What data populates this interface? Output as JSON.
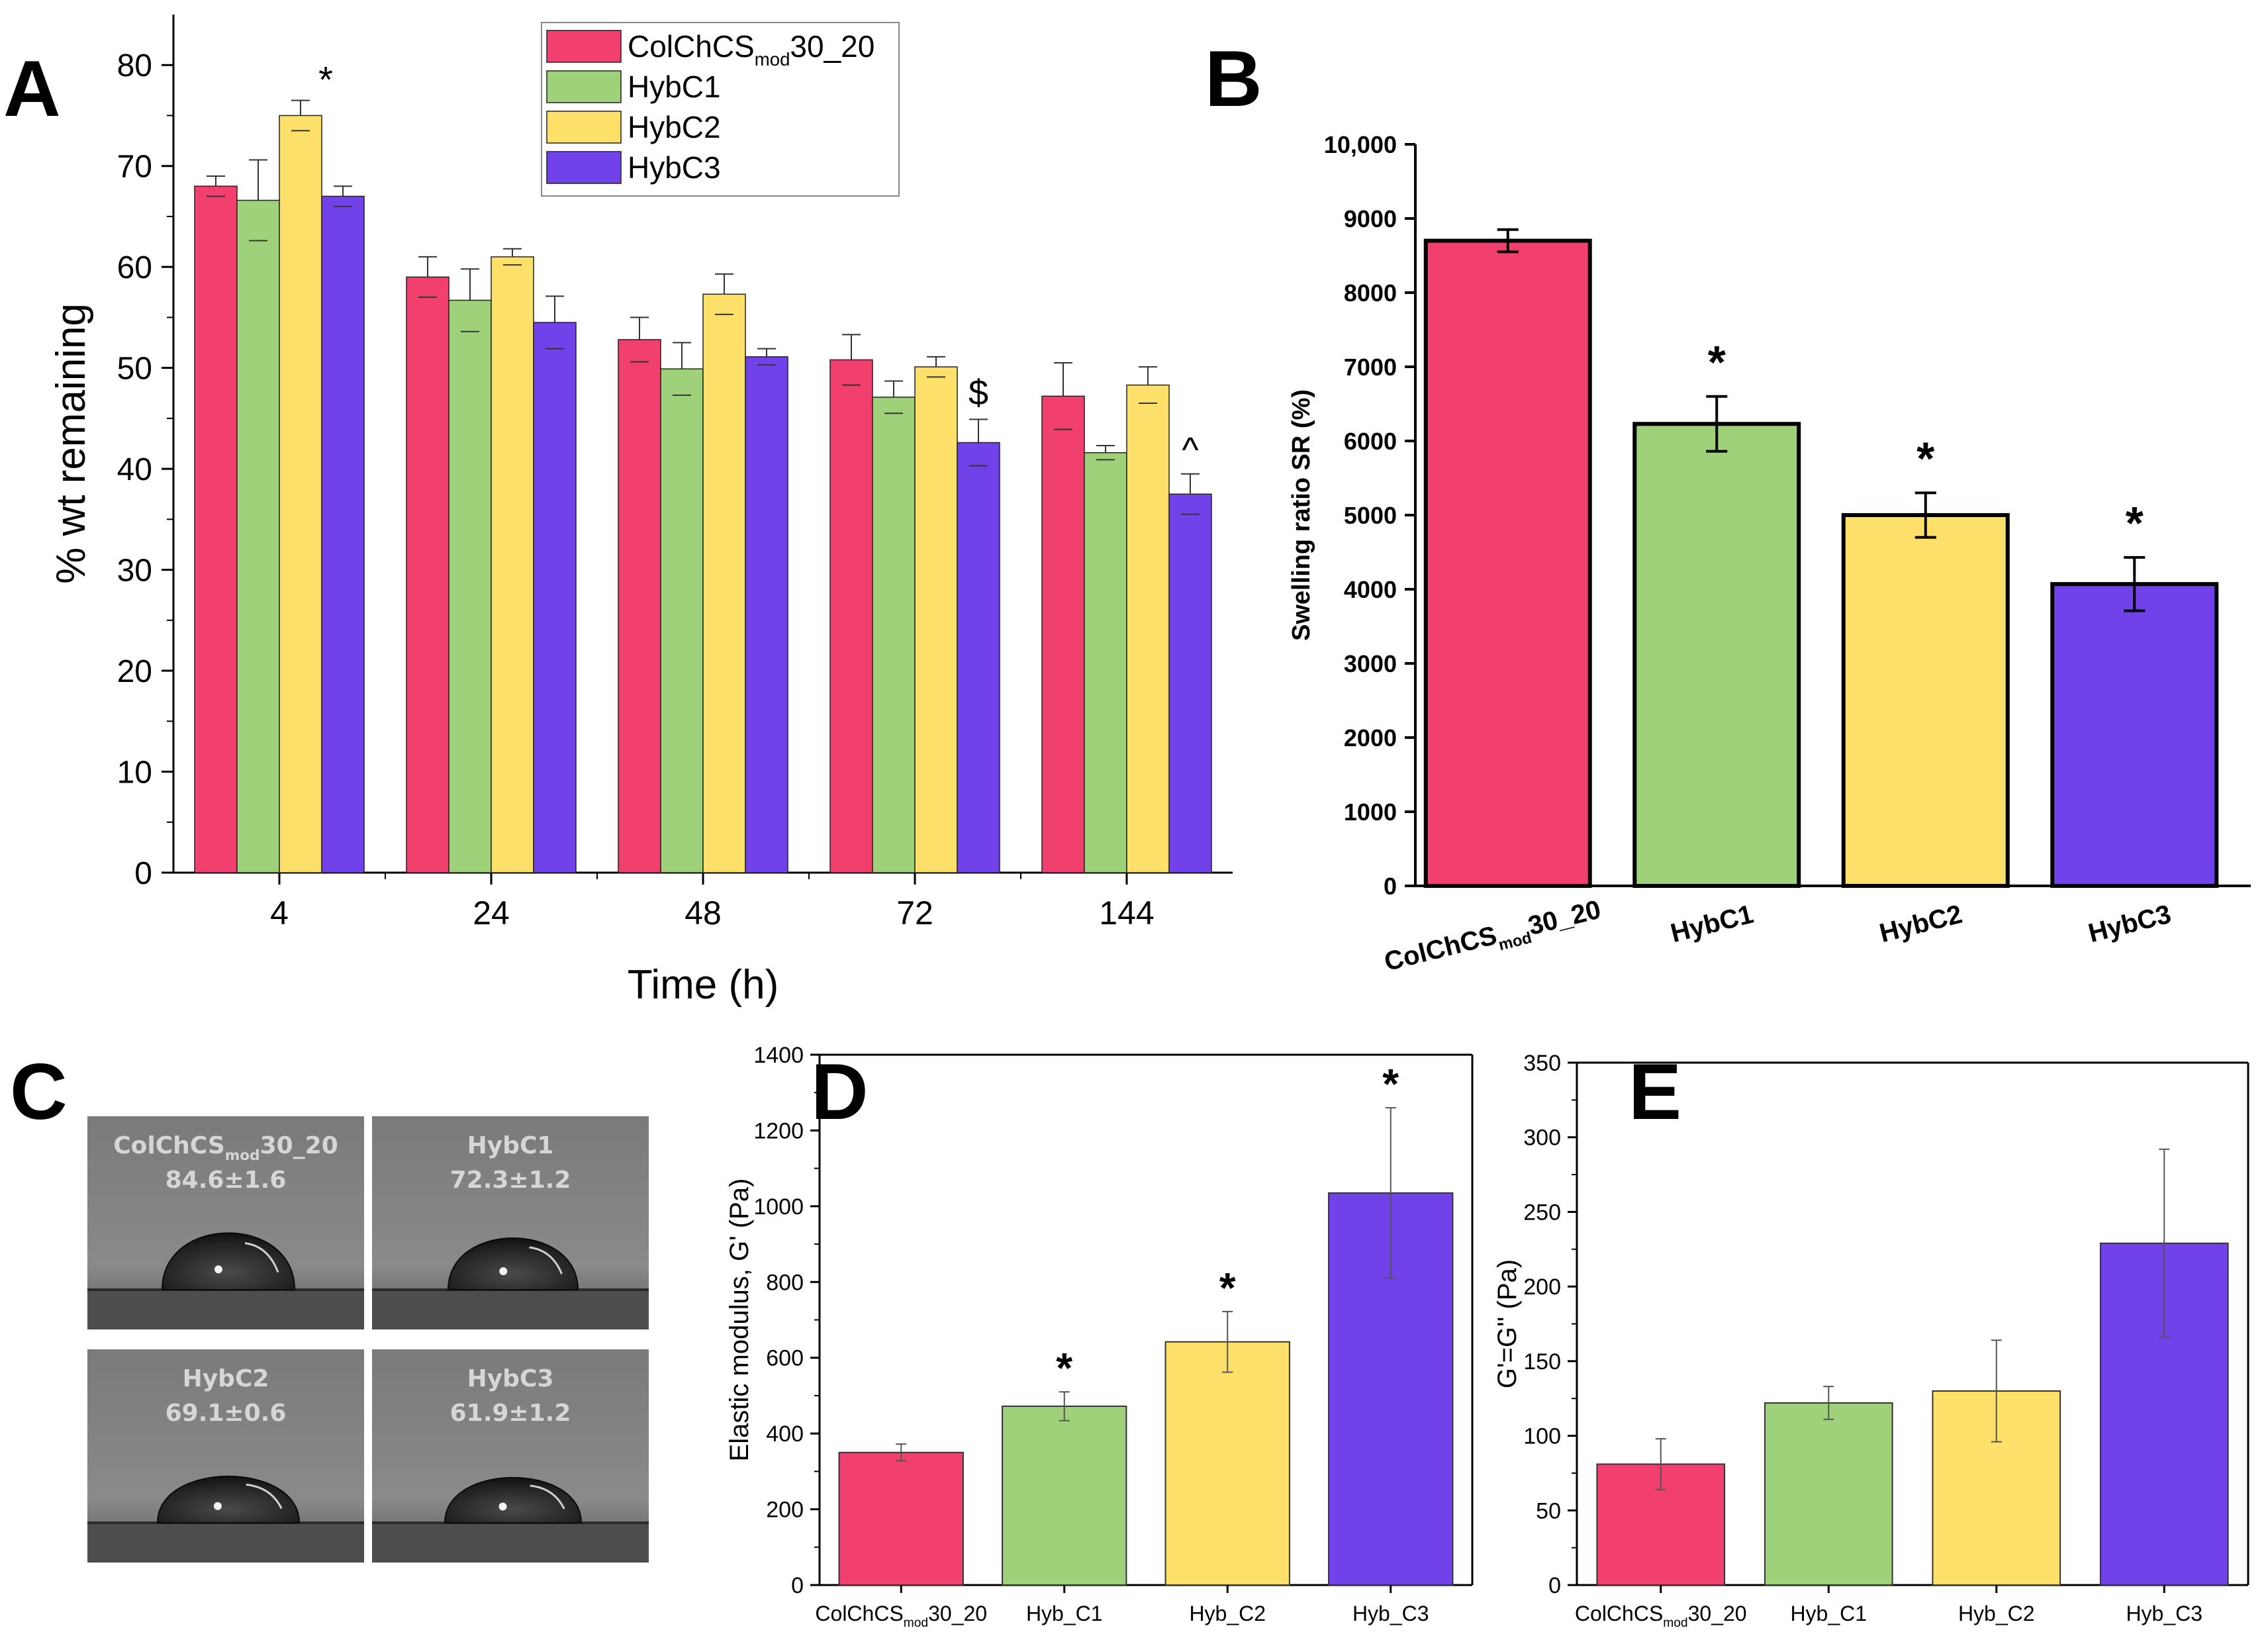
{
  "panels": {
    "A": {
      "letter": "A"
    },
    "B": {
      "letter": "B"
    },
    "C": {
      "letter": "C"
    },
    "D": {
      "letter": "D"
    },
    "E": {
      "letter": "E"
    }
  },
  "colors": {
    "ColChCS": "#f2406e",
    "HybC1": "#9fd07a",
    "HybC2": "#fde06a",
    "HybC3": "#7142ea"
  },
  "chart_data": [
    {
      "id": "A",
      "type": "bar",
      "xlabel": "Time (h)",
      "ylabel": "% wt remaining",
      "ylim": [
        0,
        85
      ],
      "yticks": [
        "0",
        "10",
        "20",
        "30",
        "40",
        "50",
        "60",
        "70",
        "80"
      ],
      "categories": [
        "4",
        "24",
        "48",
        "72",
        "144"
      ],
      "legend_position": "top-center",
      "series": [
        {
          "name": "ColChCS",
          "legend_main": "ColChCS",
          "legend_sub": "mod",
          "legend_tail": "30_20",
          "color_key": "ColChCS",
          "values": [
            68.0,
            59.0,
            52.8,
            50.8,
            47.2
          ],
          "errors": [
            1.0,
            2.0,
            2.2,
            2.5,
            3.3
          ]
        },
        {
          "name": "HybC1",
          "legend_main": "HybC1",
          "legend_sub": "",
          "legend_tail": "",
          "color_key": "HybC1",
          "values": [
            66.6,
            56.7,
            49.9,
            47.1,
            41.6
          ],
          "errors": [
            4.0,
            3.1,
            2.6,
            1.6,
            0.7
          ]
        },
        {
          "name": "HybC2",
          "legend_main": "HybC2",
          "legend_sub": "",
          "legend_tail": "",
          "color_key": "HybC2",
          "values": [
            75.0,
            61.0,
            57.3,
            50.1,
            48.3
          ],
          "errors": [
            1.5,
            0.8,
            2.0,
            1.0,
            1.8
          ]
        },
        {
          "name": "HybC3",
          "legend_main": "HybC3",
          "legend_sub": "",
          "legend_tail": "",
          "color_key": "HybC3",
          "values": [
            67.0,
            54.5,
            51.1,
            42.6,
            37.5
          ],
          "errors": [
            1.0,
            2.6,
            0.8,
            2.3,
            2.0
          ]
        }
      ],
      "annotations": [
        {
          "text": "*",
          "category": 0,
          "series": 2
        },
        {
          "text": "$",
          "category": 3,
          "series": 3
        },
        {
          "text": "^",
          "category": 4,
          "series": 3
        }
      ]
    },
    {
      "id": "B",
      "type": "bar",
      "xlabel": "",
      "ylabel": "Swelling ratio SR (%)",
      "ylim": [
        0,
        10000
      ],
      "yticks": [
        "0",
        "1000",
        "2000",
        "3000",
        "4000",
        "5000",
        "6000",
        "7000",
        "8000",
        "9000",
        "10,000"
      ],
      "categories": [
        {
          "main": "ColChCS",
          "sub": "mod",
          "tail": "30_20"
        },
        {
          "main": "HybC1",
          "sub": "",
          "tail": ""
        },
        {
          "main": "HybC2",
          "sub": "",
          "tail": ""
        },
        {
          "main": "HybC3",
          "sub": "",
          "tail": ""
        }
      ],
      "color_keys": [
        "ColChCS",
        "HybC1",
        "HybC2",
        "HybC3"
      ],
      "values": [
        8700,
        6230,
        5000,
        4070
      ],
      "errors": [
        150,
        370,
        300,
        360
      ],
      "annotations": [
        "",
        "*",
        "*",
        "*"
      ]
    },
    {
      "id": "D",
      "type": "bar",
      "xlabel": "",
      "ylabel": "Elastic modulus, G' (Pa)",
      "ylim": [
        0,
        1400
      ],
      "yticks": [
        "0",
        "200",
        "400",
        "600",
        "800",
        "1000",
        "1200",
        "1400"
      ],
      "categories": [
        {
          "main": "ColChCS",
          "sub": "mod",
          "tail": "30_20"
        },
        {
          "main": "Hyb_C1",
          "sub": "",
          "tail": ""
        },
        {
          "main": "Hyb_C2",
          "sub": "",
          "tail": ""
        },
        {
          "main": "Hyb_C3",
          "sub": "",
          "tail": ""
        }
      ],
      "color_keys": [
        "ColChCS",
        "HybC1",
        "HybC2",
        "HybC3"
      ],
      "values": [
        350,
        472,
        642,
        1035
      ],
      "errors": [
        22,
        38,
        80,
        225
      ],
      "annotations": [
        "",
        "*",
        "*",
        "*"
      ]
    },
    {
      "id": "E",
      "type": "bar",
      "xlabel": "",
      "ylabel": "G'=G'' (Pa)",
      "ylim": [
        0,
        350
      ],
      "yticks": [
        "0",
        "50",
        "100",
        "150",
        "200",
        "250",
        "300",
        "350"
      ],
      "categories": [
        {
          "main": "ColChCS",
          "sub": "mod",
          "tail": "30_20"
        },
        {
          "main": "Hyb_C1",
          "sub": "",
          "tail": ""
        },
        {
          "main": "Hyb_C2",
          "sub": "",
          "tail": ""
        },
        {
          "main": "Hyb_C3",
          "sub": "",
          "tail": ""
        }
      ],
      "color_keys": [
        "ColChCS",
        "HybC1",
        "HybC2",
        "HybC3"
      ],
      "values": [
        81,
        122,
        130,
        229
      ],
      "errors": [
        17,
        11,
        34,
        63
      ],
      "annotations": [
        "",
        "",
        "",
        ""
      ]
    }
  ],
  "contact_angles": [
    {
      "main": "ColChCS",
      "sub": "mod",
      "tail": "30_20",
      "value": "84.6±1.6"
    },
    {
      "main": "HybC1",
      "sub": "",
      "tail": "",
      "value": "72.3±1.2"
    },
    {
      "main": "HybC2",
      "sub": "",
      "tail": "",
      "value": "69.1±0.6"
    },
    {
      "main": "HybC3",
      "sub": "",
      "tail": "",
      "value": "61.9±1.2"
    }
  ]
}
